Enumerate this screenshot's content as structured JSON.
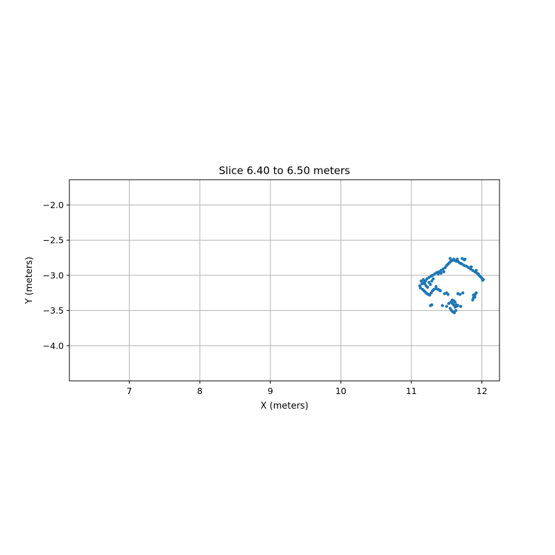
{
  "chart_data": {
    "type": "scatter",
    "title": "Slice 6.40 to 6.50 meters",
    "xlabel": "X (meters)",
    "ylabel": "Y (meters)",
    "xlim": [
      6.15,
      12.25
    ],
    "ylim": [
      -4.5,
      -1.64
    ],
    "x_ticks": [
      7,
      8,
      9,
      10,
      11,
      12
    ],
    "x_tick_labels": [
      "7",
      "8",
      "9",
      "10",
      "11",
      "12"
    ],
    "y_ticks": [
      -2.0,
      -2.5,
      -3.0,
      -3.5,
      -4.0
    ],
    "y_tick_labels": [
      "−2.0",
      "−2.5",
      "−3.0",
      "−3.5",
      "−4.0"
    ],
    "grid": true,
    "marker_color": "#1f77b4",
    "series": [
      {
        "x": [
          11.12,
          11.15,
          11.18,
          11.2,
          11.22,
          11.25,
          11.28,
          11.3,
          11.33,
          11.36,
          11.39,
          11.42,
          11.45,
          11.48,
          11.5,
          11.52,
          11.54,
          11.56,
          11.58,
          11.6,
          11.62,
          11.64,
          11.66,
          11.68,
          11.7,
          11.72,
          11.75,
          11.78,
          11.81,
          11.84,
          11.87,
          11.9,
          11.93,
          11.96,
          11.98,
          12.0,
          12.02,
          11.13,
          11.16,
          11.18,
          11.2,
          11.22,
          11.24,
          11.26,
          11.28,
          11.3,
          11.32,
          11.14,
          11.17,
          11.19,
          11.21,
          11.23,
          11.25,
          11.27,
          11.29,
          11.31,
          11.35,
          11.38,
          11.41,
          11.44,
          11.5,
          11.53,
          11.56,
          11.58,
          11.6,
          11.62,
          11.64,
          11.66,
          11.7,
          11.55,
          11.57,
          11.59,
          11.61,
          11.63,
          11.58,
          11.62,
          11.6,
          11.64,
          11.87,
          11.88,
          11.89,
          11.9,
          11.91,
          11.92,
          11.88,
          11.9,
          11.38,
          11.42,
          11.46,
          11.72,
          11.75,
          11.55,
          11.6,
          11.65,
          11.76,
          11.85,
          11.92,
          11.95,
          12.01,
          11.47,
          11.5,
          11.52,
          11.66,
          11.69,
          11.73,
          11.35,
          11.4,
          11.27,
          11.29
        ],
        "y": [
          -3.15,
          -3.12,
          -3.1,
          -3.08,
          -3.05,
          -3.03,
          -3.01,
          -3.0,
          -2.98,
          -2.96,
          -2.95,
          -2.93,
          -2.91,
          -2.89,
          -2.86,
          -2.84,
          -2.82,
          -2.8,
          -2.79,
          -2.78,
          -2.79,
          -2.8,
          -2.8,
          -2.82,
          -2.83,
          -2.84,
          -2.86,
          -2.87,
          -2.89,
          -2.91,
          -2.93,
          -2.95,
          -2.97,
          -3.0,
          -3.02,
          -3.04,
          -3.06,
          -3.18,
          -3.2,
          -3.22,
          -3.24,
          -3.26,
          -3.27,
          -3.28,
          -3.25,
          -3.22,
          -3.2,
          -3.08,
          -3.06,
          -3.12,
          -3.15,
          -3.17,
          -3.1,
          -3.13,
          -3.08,
          -3.05,
          -3.16,
          -3.2,
          -3.22,
          -3.43,
          -3.44,
          -3.4,
          -3.38,
          -3.35,
          -3.42,
          -3.45,
          -3.44,
          -3.43,
          -3.44,
          -3.47,
          -3.5,
          -3.52,
          -3.53,
          -3.5,
          -3.4,
          -3.38,
          -3.36,
          -3.42,
          -3.35,
          -3.32,
          -3.3,
          -3.28,
          -3.26,
          -3.25,
          -3.28,
          -3.31,
          -2.98,
          -2.97,
          -2.95,
          -2.76,
          -2.78,
          -2.76,
          -2.77,
          -2.77,
          -2.77,
          -2.88,
          -2.93,
          -2.98,
          -3.07,
          -3.26,
          -3.25,
          -3.27,
          -3.26,
          -3.27,
          -3.25,
          -3.19,
          -3.21,
          -3.43,
          -3.42
        ]
      }
    ]
  }
}
